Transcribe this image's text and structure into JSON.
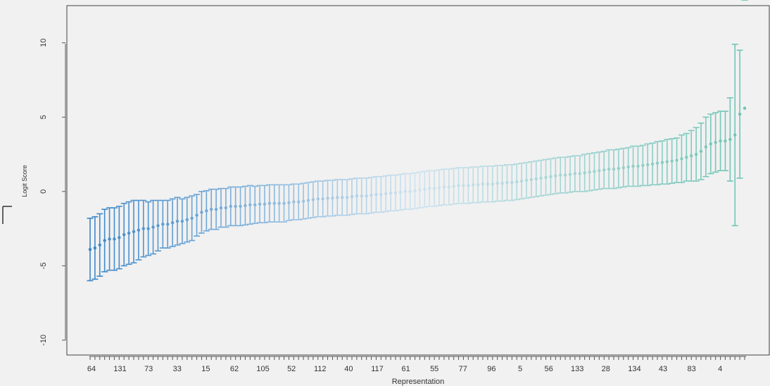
{
  "chart_data": {
    "type": "scatter",
    "title": "",
    "xlabel": "Representation",
    "ylabel": "Logit Score",
    "ylim": [
      -11,
      12.5
    ],
    "yticks": [
      10,
      5,
      0,
      -5,
      -10
    ],
    "xtick_labels": [
      "64",
      "131",
      "73",
      "33",
      "15",
      "62",
      "105",
      "52",
      "112",
      "40",
      "117",
      "61",
      "55",
      "77",
      "96",
      "5",
      "56",
      "133",
      "28",
      "134",
      "43",
      "83",
      "4"
    ],
    "n_points": 136,
    "error_bars": true,
    "grid": false,
    "legend": "none",
    "colors": {
      "low": "#3a86c8",
      "mid": "#cfe3ef",
      "high": "#6fc4b4"
    },
    "series": [
      {
        "values": [
          -3.9,
          -3.8,
          -3.6,
          -3.3,
          -3.2,
          -3.2,
          -3.1,
          -2.9,
          -2.8,
          -2.7,
          -2.6,
          -2.5,
          -2.5,
          -2.4,
          -2.3,
          -2.2,
          -2.2,
          -2.1,
          -2.0,
          -2.0,
          -1.9,
          -1.8,
          -1.6,
          -1.4,
          -1.3,
          -1.2,
          -1.2,
          -1.1,
          -1.1,
          -1.0,
          -1.0,
          -1.0,
          -0.95,
          -0.9,
          -0.9,
          -0.85,
          -0.85,
          -0.8,
          -0.8,
          -0.8,
          -0.8,
          -0.75,
          -0.7,
          -0.7,
          -0.65,
          -0.6,
          -0.55,
          -0.5,
          -0.5,
          -0.45,
          -0.45,
          -0.4,
          -0.4,
          -0.4,
          -0.35,
          -0.3,
          -0.3,
          -0.3,
          -0.25,
          -0.2,
          -0.2,
          -0.15,
          -0.1,
          -0.1,
          -0.05,
          0.0,
          0.0,
          0.05,
          0.1,
          0.15,
          0.2,
          0.2,
          0.25,
          0.3,
          0.3,
          0.35,
          0.4,
          0.4,
          0.4,
          0.45,
          0.45,
          0.5,
          0.5,
          0.5,
          0.55,
          0.55,
          0.6,
          0.6,
          0.65,
          0.7,
          0.75,
          0.8,
          0.85,
          0.9,
          0.95,
          1.0,
          1.05,
          1.1,
          1.1,
          1.15,
          1.2,
          1.2,
          1.25,
          1.3,
          1.35,
          1.4,
          1.45,
          1.5,
          1.5,
          1.55,
          1.6,
          1.65,
          1.7,
          1.7,
          1.75,
          1.8,
          1.85,
          1.9,
          1.95,
          2.0,
          2.05,
          2.1,
          2.2,
          2.3,
          2.4,
          2.5,
          2.7,
          3.0,
          3.2,
          3.3,
          3.4,
          3.4,
          3.5,
          3.8,
          5.2,
          5.6
        ]
      }
    ],
    "half_widths": [
      2.1,
      2.1,
      2.1,
      2.1,
      2.1,
      2.1,
      2.1,
      2.1,
      2.1,
      2.1,
      2.0,
      1.9,
      1.8,
      1.8,
      1.7,
      1.6,
      1.6,
      1.6,
      1.6,
      1.5,
      1.5,
      1.5,
      1.4,
      1.4,
      1.35,
      1.35,
      1.35,
      1.3,
      1.3,
      1.3,
      1.3,
      1.3,
      1.3,
      1.3,
      1.25,
      1.25,
      1.25,
      1.25,
      1.25,
      1.25,
      1.25,
      1.2,
      1.2,
      1.2,
      1.2,
      1.2,
      1.2,
      1.2,
      1.2,
      1.2,
      1.2,
      1.2,
      1.2,
      1.2,
      1.2,
      1.2,
      1.2,
      1.2,
      1.2,
      1.2,
      1.2,
      1.2,
      1.2,
      1.2,
      1.2,
      1.2,
      1.2,
      1.2,
      1.2,
      1.2,
      1.2,
      1.2,
      1.2,
      1.2,
      1.2,
      1.2,
      1.2,
      1.2,
      1.2,
      1.2,
      1.2,
      1.2,
      1.2,
      1.2,
      1.2,
      1.2,
      1.2,
      1.2,
      1.2,
      1.2,
      1.2,
      1.2,
      1.2,
      1.2,
      1.2,
      1.2,
      1.2,
      1.2,
      1.2,
      1.2,
      1.2,
      1.2,
      1.25,
      1.25,
      1.25,
      1.25,
      1.25,
      1.3,
      1.3,
      1.3,
      1.3,
      1.3,
      1.35,
      1.35,
      1.35,
      1.4,
      1.4,
      1.45,
      1.45,
      1.5,
      1.5,
      1.5,
      1.6,
      1.6,
      1.7,
      1.8,
      1.9,
      2.0,
      2.0,
      2.0,
      2.0,
      2.0,
      2.8,
      6.1,
      4.3
    ]
  }
}
